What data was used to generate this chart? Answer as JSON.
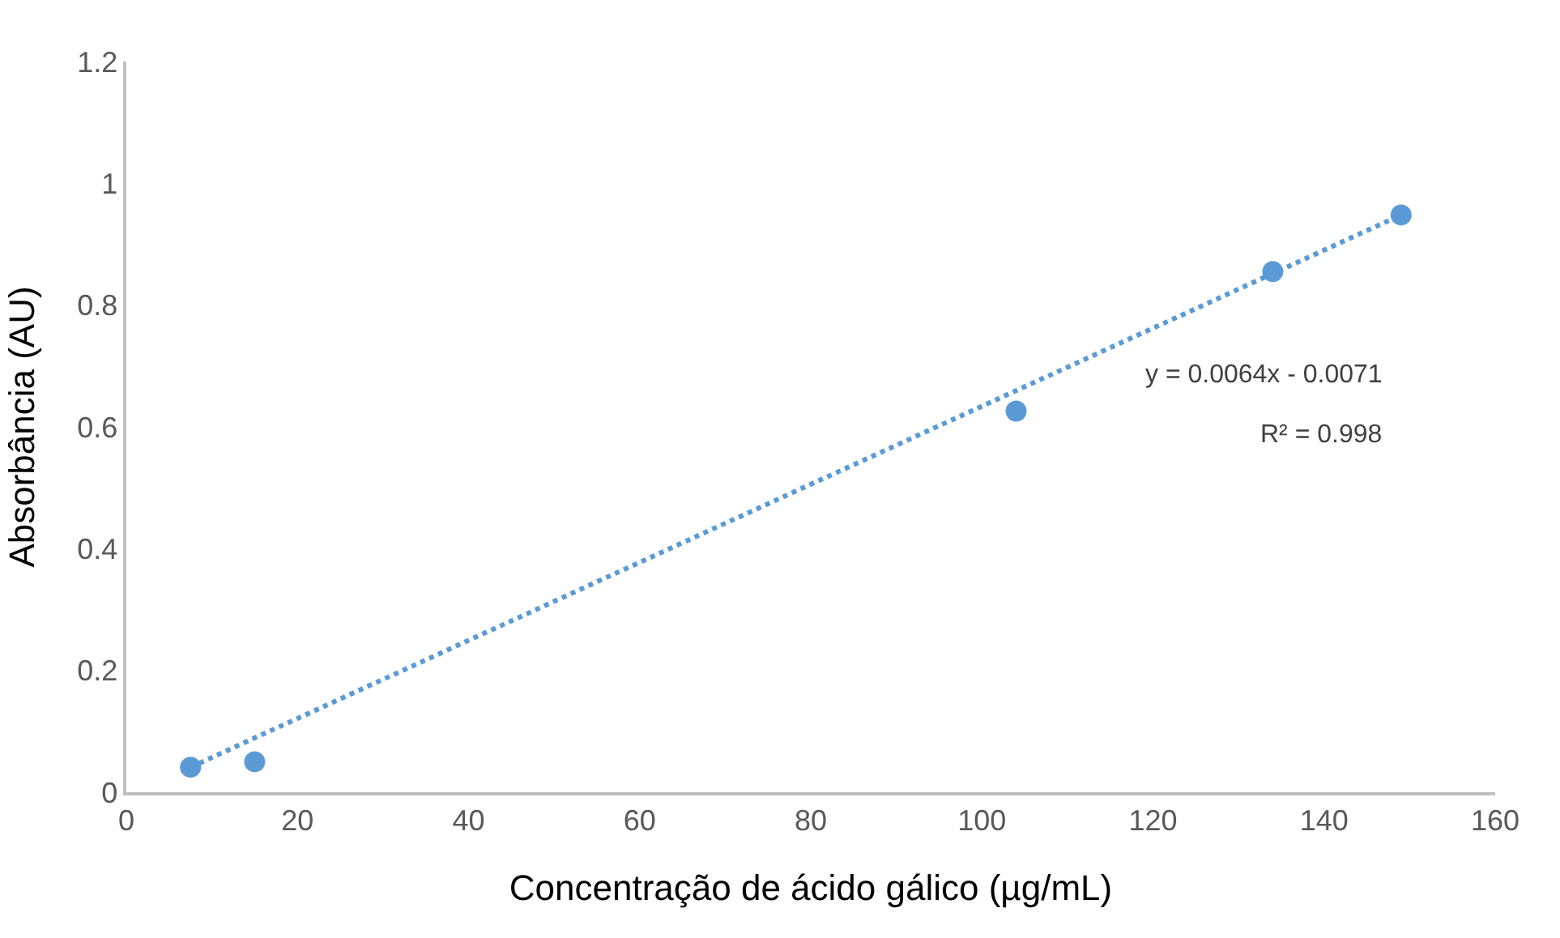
{
  "chart_data": {
    "type": "scatter",
    "xlabel": "Concentração de ácido gálico (µg/mL)",
    "ylabel": "Absorbância (AU)",
    "xlim": [
      0,
      160
    ],
    "xticks": [
      0,
      20,
      40,
      60,
      80,
      100,
      120,
      140,
      160
    ],
    "ylim": [
      0,
      1.2
    ],
    "yticks": [
      0,
      0.2,
      0.4,
      0.6,
      0.8,
      1,
      1.2
    ],
    "series": [
      {
        "color": "#5b9bd5",
        "marker": "circle",
        "x": [
          7.5,
          15,
          104,
          134,
          149
        ],
        "values": [
          0.041,
          0.05,
          0.626,
          0.855,
          0.948
        ]
      },
      {
        "type": "line",
        "color": "#5b9bd5",
        "line_style": "dotted",
        "marker": "none",
        "x": [
          7.5,
          149
        ],
        "values": [
          0.041,
          0.948
        ]
      }
    ],
    "annotations": [
      "y = 0.0064x - 0.0071",
      "R² = 0.998"
    ]
  }
}
